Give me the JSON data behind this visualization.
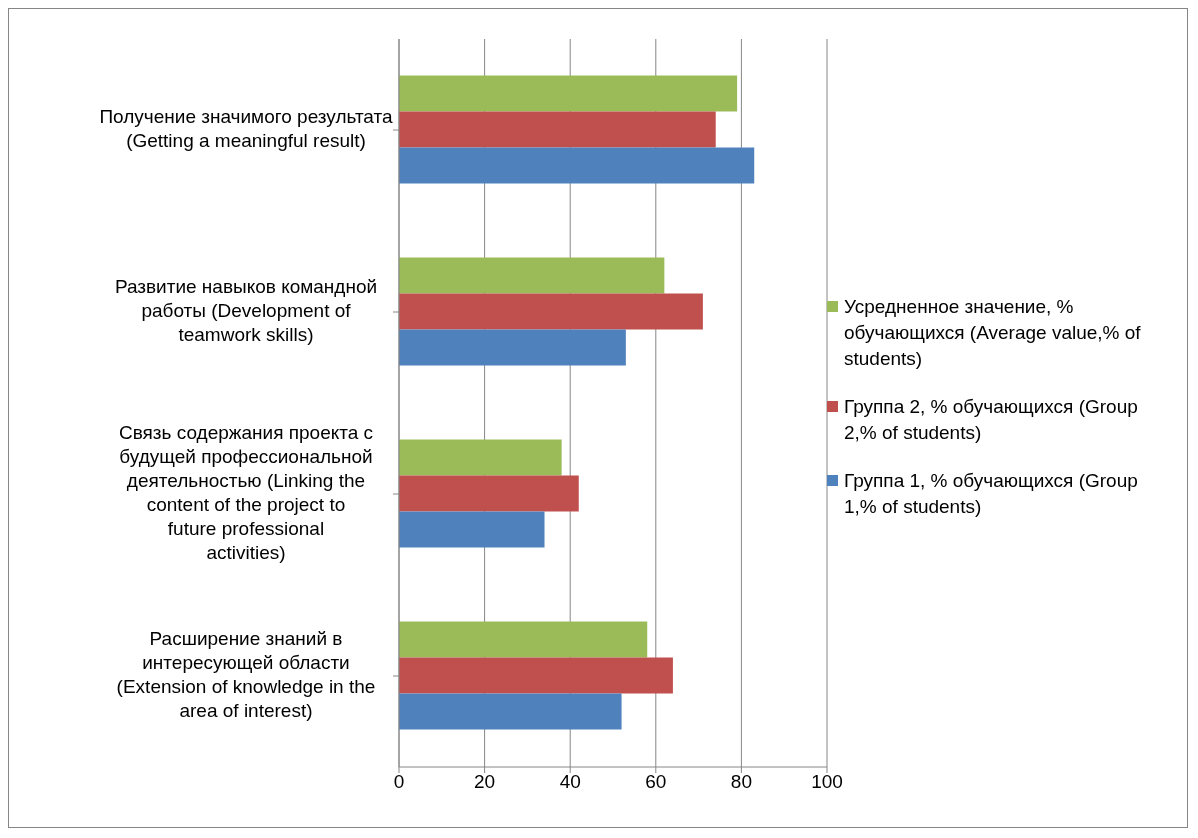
{
  "chart_data": {
    "type": "bar",
    "orientation": "horizontal",
    "categories": [
      "Получение значимого результата (Getting a meaningful result)",
      "Развитие навыков командной работы (Development of teamwork skills)",
      "Связь содержания проекта с будущей профессиональной деятельностью (Linking the content of the project to future professional activities)",
      "Расширение знаний в интересующей области (Extension of knowledge in the area of interest)"
    ],
    "series": [
      {
        "name": "Усредненное значение, % обучающихся (Average value,% of students)",
        "color": "#9bbb59",
        "values": [
          79,
          62,
          38,
          58
        ]
      },
      {
        "name": "Группа 2, % обучающихся (Group 2,% of students)",
        "color": "#c0504d",
        "values": [
          74,
          71,
          42,
          64
        ]
      },
      {
        "name": "Группа 1, % обучающихся (Group 1,% of students)",
        "color": "#4f81bd",
        "values": [
          83,
          53,
          34,
          52
        ]
      }
    ],
    "xlim": [
      0,
      100
    ],
    "xticks": [
      0,
      20,
      40,
      60,
      80,
      100
    ],
    "grid": "x",
    "legend": "right"
  }
}
